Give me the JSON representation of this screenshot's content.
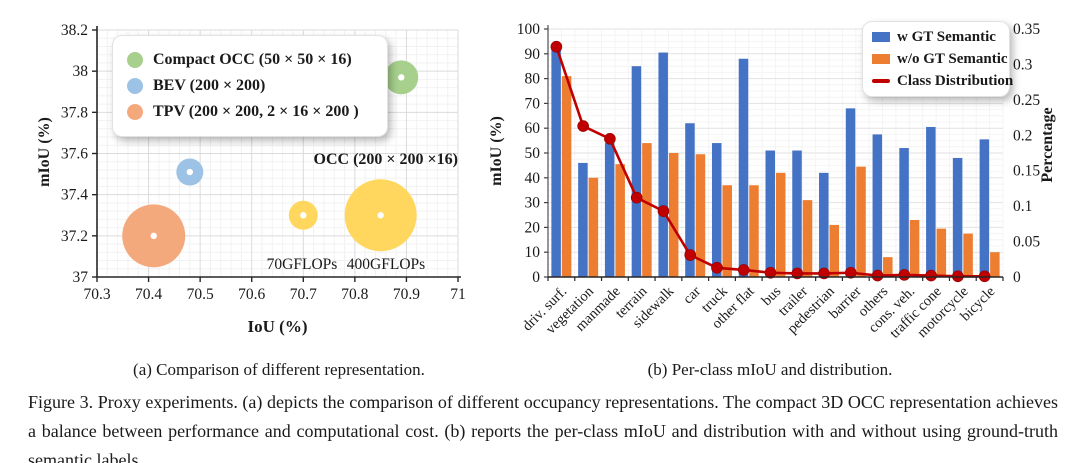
{
  "figure": {
    "caption_a": "(a) Comparison of different representation.",
    "caption_b": "(b) Per-class mIoU and distribution.",
    "figure_caption": "Figure 3. Proxy experiments. (a) depicts the comparison of different occupancy representations. The compact 3D OCC representation achieves a balance between performance and computational cost. (b) reports the per-class mIoU and distribution with and without using ground-truth semantic labels."
  },
  "chart_data": [
    {
      "id": "representation-comparison",
      "type": "scatter",
      "xlabel": "IoU (%)",
      "ylabel": "mIoU (%)",
      "xlim": [
        70.3,
        71
      ],
      "ylim": [
        37,
        38.2
      ],
      "xticks": [
        [
          70.3,
          "70.3"
        ],
        [
          70.4,
          "70.4"
        ],
        [
          70.5,
          "70.5"
        ],
        [
          70.6,
          "70.6"
        ],
        [
          70.7,
          "70.7"
        ],
        [
          70.8,
          "70.8"
        ],
        [
          70.9,
          "70.9"
        ],
        [
          71,
          "71"
        ]
      ],
      "yticks": [
        [
          37,
          "37"
        ],
        [
          37.2,
          "37.2"
        ],
        [
          37.4,
          "37.4"
        ],
        [
          37.6,
          "37.6"
        ],
        [
          37.8,
          "37.8"
        ],
        [
          38,
          "38"
        ],
        [
          38.2,
          "38.2"
        ]
      ],
      "grid": "minor+major",
      "legend_position": "upper-left",
      "series": [
        {
          "name": "Compact OCC (50 × 50 × 16)",
          "color": "#A8D08D",
          "points": [
            {
              "x": 70.89,
              "y": 37.97,
              "r": 17
            }
          ]
        },
        {
          "name": "BEV (200 × 200)",
          "color": "#9CC2E5",
          "points": [
            {
              "x": 70.48,
              "y": 37.51,
              "r": 13.5
            }
          ]
        },
        {
          "name": "TPV (200 × 200, 2 × 16 × 200 )",
          "color": "#F4A97C",
          "points": [
            {
              "x": 70.41,
              "y": 37.2,
              "r": 31.5
            }
          ]
        },
        {
          "name": "OCC (200 × 200 ×16)",
          "color": "#FFD75F",
          "points": [
            {
              "x": 70.7,
              "y": 37.3,
              "r": 14.5,
              "label": "70GFLOPs"
            },
            {
              "x": 70.85,
              "y": 37.3,
              "r": 36,
              "label": "400GFLOPs"
            }
          ]
        }
      ]
    },
    {
      "id": "per-class-miou-distribution",
      "type": "bar",
      "ylabel_left": "mIoU (%)",
      "ylabel_right": "Percentage",
      "ylim_left": [
        0,
        100
      ],
      "ylim_right": [
        0,
        0.35
      ],
      "yticks_left": [
        [
          0,
          "0"
        ],
        [
          10,
          "10"
        ],
        [
          20,
          "20"
        ],
        [
          30,
          "30"
        ],
        [
          40,
          "40"
        ],
        [
          50,
          "50"
        ],
        [
          60,
          "60"
        ],
        [
          70,
          "70"
        ],
        [
          80,
          "80"
        ],
        [
          90,
          "90"
        ],
        [
          100,
          "100"
        ]
      ],
      "yticks_right": [
        [
          0,
          "0"
        ],
        [
          0.05,
          "0.05"
        ],
        [
          0.1,
          "0.1"
        ],
        [
          0.15,
          "0.15"
        ],
        [
          0.2,
          "0.2"
        ],
        [
          0.25,
          "0.25"
        ],
        [
          0.3,
          "0.3"
        ],
        [
          0.35,
          "0.35"
        ]
      ],
      "grid": "minor+major",
      "legend_position": "upper-right",
      "categories": [
        "driv. surf.",
        "vegetation",
        "manmade",
        "terrain",
        "sidewalk",
        "car",
        "truck",
        "other flat",
        "bus",
        "trailer",
        "pedestrian",
        "barrier",
        "others",
        "cons. veh.",
        "traffic cone",
        "motorcycle",
        "bicycle"
      ],
      "series": [
        {
          "name": "w GT Semantic",
          "type": "bar",
          "axis": "left",
          "color": "#4472C4",
          "values": [
            93,
            46,
            54,
            85,
            90.5,
            62,
            54,
            88,
            51,
            51,
            42,
            68,
            57.5,
            52,
            60.5,
            48,
            55.5
          ]
        },
        {
          "name": "w/o GT Semantic",
          "type": "bar",
          "axis": "left",
          "color": "#ED7D31",
          "values": [
            81,
            40,
            45.5,
            54,
            50,
            49.5,
            37,
            37,
            42,
            31,
            21,
            44.5,
            8,
            23,
            19.5,
            17.5,
            10
          ]
        },
        {
          "name": "Class Distribution",
          "type": "line",
          "axis": "right",
          "color": "#C00000",
          "values": [
            0.325,
            0.213,
            0.195,
            0.112,
            0.093,
            0.031,
            0.013,
            0.01,
            0.006,
            0.005,
            0.005,
            0.006,
            0.002,
            0.003,
            0.002,
            0.001,
            0.001
          ]
        }
      ]
    }
  ]
}
